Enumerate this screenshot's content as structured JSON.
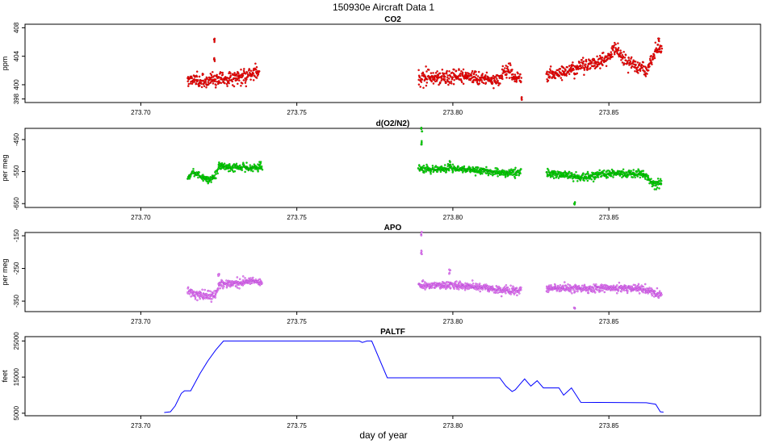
{
  "figure": {
    "title": "150930e   Aircraft Data 1",
    "xlabel": "day of year",
    "x_ticks": [
      "273.70",
      "273.75",
      "273.80",
      "273.85"
    ]
  },
  "chart_data": [
    {
      "type": "scatter",
      "title": "CO2",
      "ylabel": "ppm",
      "color": "#ff0000",
      "outline_color": "#8b0000",
      "xlim": [
        273.6629,
        273.8986
      ],
      "ylim": [
        397.5,
        408.5
      ],
      "y_ticks": [
        398,
        400,
        404,
        408
      ],
      "y_tick_labels": [
        "398",
        "400",
        "404",
        "408"
      ],
      "trace": [
        [
          273.715,
          400.8
        ],
        [
          273.72,
          400.5
        ],
        [
          273.7235,
          400.9
        ],
        [
          273.728,
          400.8
        ],
        [
          273.733,
          401.3
        ],
        [
          273.738,
          401.6
        ],
        null,
        [
          273.789,
          401.0
        ],
        [
          273.795,
          401.0
        ],
        [
          273.8,
          401.2
        ],
        [
          273.806,
          401.1
        ],
        [
          273.812,
          400.7
        ],
        [
          273.815,
          400.6
        ],
        [
          273.816,
          401.8
        ],
        [
          273.818,
          401.9
        ],
        [
          273.82,
          400.9
        ],
        [
          273.822,
          400.8
        ],
        null,
        [
          273.83,
          401.4
        ],
        [
          273.834,
          401.6
        ],
        [
          273.838,
          402.2
        ],
        [
          273.842,
          402.8
        ],
        [
          273.846,
          403.0
        ],
        [
          273.85,
          403.8
        ],
        [
          273.852,
          405.2
        ],
        [
          273.854,
          404.2
        ],
        [
          273.856,
          403.2
        ],
        [
          273.858,
          402.8
        ],
        [
          273.861,
          402.4
        ],
        [
          273.862,
          401.8
        ],
        [
          273.864,
          404.2
        ],
        [
          273.866,
          405.5
        ],
        [
          273.867,
          404.6
        ]
      ],
      "spikes": [
        [
          273.7235,
          406.2
        ],
        [
          273.7235,
          403.4
        ],
        [
          273.822,
          398.2
        ],
        [
          273.866,
          406.3
        ]
      ],
      "noise": 0.5
    },
    {
      "type": "scatter",
      "title": "d(O2/N2)",
      "ylabel": "per meg",
      "color": "#00ee00",
      "outline_color": "#006400",
      "xlim": [
        273.6629,
        273.8986
      ],
      "ylim": [
        -662,
        -415
      ],
      "y_ticks": [
        -450,
        -550,
        -650
      ],
      "y_tick_labels": [
        "-450",
        "-550",
        "-650"
      ],
      "trace": [
        [
          273.715,
          -570
        ],
        [
          273.717,
          -550
        ],
        [
          273.719,
          -565
        ],
        [
          273.722,
          -575
        ],
        [
          273.724,
          -565
        ],
        [
          273.725,
          -532
        ],
        [
          273.73,
          -538
        ],
        [
          273.735,
          -535
        ],
        [
          273.739,
          -535
        ],
        null,
        [
          273.789,
          -540
        ],
        [
          273.795,
          -543
        ],
        [
          273.8,
          -540
        ],
        [
          273.806,
          -545
        ],
        [
          273.812,
          -550
        ],
        [
          273.818,
          -555
        ],
        [
          273.822,
          -550
        ],
        null,
        [
          273.83,
          -555
        ],
        [
          273.836,
          -560
        ],
        [
          273.84,
          -568
        ],
        [
          273.845,
          -565
        ],
        [
          273.85,
          -555
        ],
        [
          273.855,
          -558
        ],
        [
          273.86,
          -555
        ],
        [
          273.862,
          -560
        ],
        [
          273.864,
          -590
        ],
        [
          273.867,
          -585
        ]
      ],
      "spikes": [
        [
          273.79,
          -420
        ],
        [
          273.79,
          -460
        ],
        [
          273.839,
          -650
        ],
        [
          273.799,
          -523
        ]
      ],
      "noise": 6
    },
    {
      "type": "scatter",
      "title": "APO",
      "ylabel": "per meg",
      "color": "#ee82ee",
      "outline_color": "#9932cc",
      "xlim": [
        273.6629,
        273.8986
      ],
      "ylim": [
        -382,
        -140
      ],
      "y_ticks": [
        -150,
        -250,
        -350
      ],
      "y_tick_labels": [
        "-150",
        "-250",
        "-350"
      ],
      "trace": [
        [
          273.715,
          -318
        ],
        [
          273.718,
          -330
        ],
        [
          273.722,
          -335
        ],
        [
          273.724,
          -330
        ],
        [
          273.725,
          -300
        ],
        [
          273.73,
          -295
        ],
        [
          273.735,
          -290
        ],
        [
          273.739,
          -292
        ],
        null,
        [
          273.789,
          -300
        ],
        [
          273.795,
          -303
        ],
        [
          273.8,
          -300
        ],
        [
          273.806,
          -305
        ],
        [
          273.812,
          -312
        ],
        [
          273.818,
          -318
        ],
        [
          273.822,
          -315
        ],
        null,
        [
          273.83,
          -310
        ],
        [
          273.836,
          -310
        ],
        [
          273.842,
          -313
        ],
        [
          273.848,
          -310
        ],
        [
          273.855,
          -310
        ],
        [
          273.86,
          -312
        ],
        [
          273.863,
          -320
        ],
        [
          273.867,
          -332
        ]
      ],
      "spikes": [
        [
          273.79,
          -145
        ],
        [
          273.79,
          -200
        ],
        [
          273.839,
          -375
        ],
        [
          273.799,
          -260
        ],
        [
          273.725,
          -270
        ]
      ],
      "noise": 6
    },
    {
      "type": "line",
      "title": "PALTF",
      "ylabel": "feet",
      "color": "#0000ff",
      "xlim": [
        273.6629,
        273.8986
      ],
      "ylim": [
        4300,
        26200
      ],
      "y_ticks": [
        5000,
        15000,
        25000
      ],
      "y_tick_labels": [
        "5000",
        "15000",
        "25000"
      ],
      "points": [
        [
          273.7075,
          5200
        ],
        [
          273.7095,
          5400
        ],
        [
          273.711,
          7000
        ],
        [
          273.713,
          10500
        ],
        [
          273.714,
          11200
        ],
        [
          273.716,
          11200
        ],
        [
          273.719,
          16000
        ],
        [
          273.7215,
          19500
        ],
        [
          273.724,
          22500
        ],
        [
          273.7265,
          25000
        ],
        [
          273.77,
          25000
        ],
        [
          273.771,
          24600
        ],
        [
          273.7725,
          25000
        ],
        [
          273.774,
          25000
        ],
        [
          273.779,
          14800
        ],
        [
          273.815,
          14800
        ],
        [
          273.817,
          12500
        ],
        [
          273.819,
          11000
        ],
        [
          273.82,
          11500
        ],
        [
          273.822,
          13500
        ],
        [
          273.823,
          14500
        ],
        [
          273.825,
          12500
        ],
        [
          273.827,
          14000
        ],
        [
          273.829,
          12000
        ],
        [
          273.834,
          12000
        ],
        [
          273.8355,
          10000
        ],
        [
          273.838,
          12000
        ],
        [
          273.841,
          8000
        ],
        [
          273.862,
          7900
        ],
        [
          273.865,
          7500
        ],
        [
          273.8665,
          5400
        ],
        [
          273.8675,
          5300
        ]
      ]
    }
  ]
}
